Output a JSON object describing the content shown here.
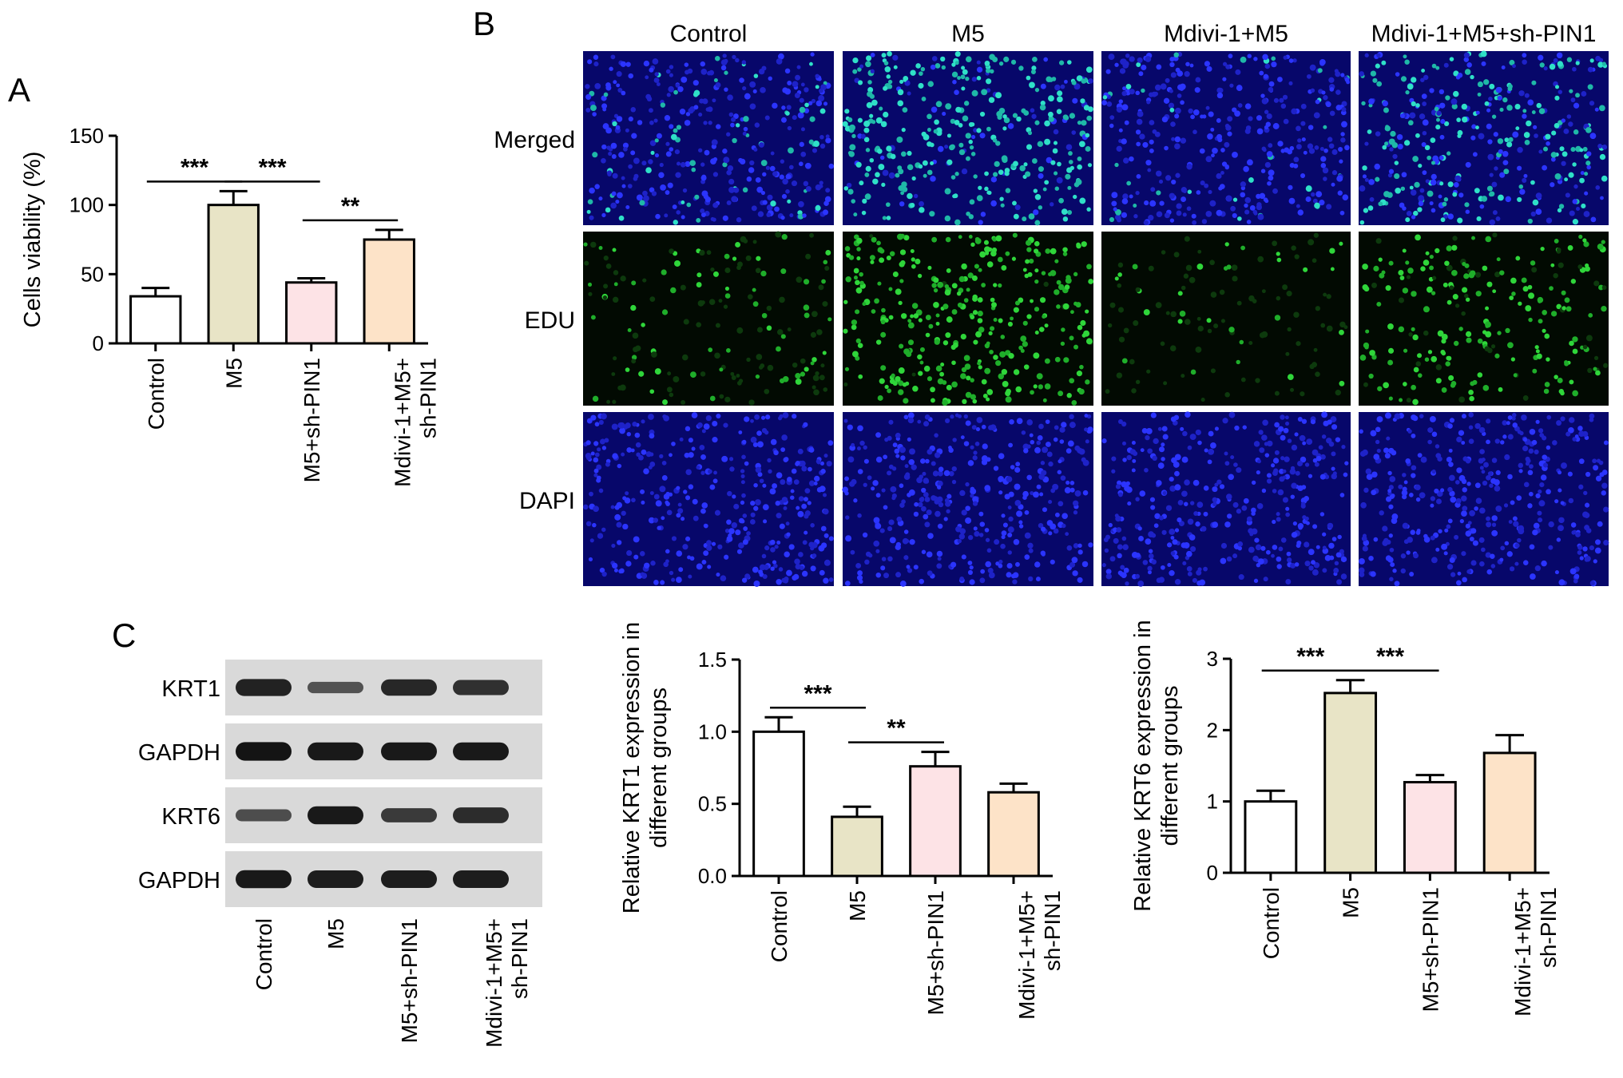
{
  "panels": {
    "a": "A",
    "b": "B",
    "c": "C"
  },
  "colors": {
    "control": "#ffffff",
    "m5": "#e8e4c6",
    "m5_shpin1": "#fde3e6",
    "combo": "#fde3c8"
  },
  "chart_data": [
    {
      "id": "viability",
      "type": "bar",
      "categories": [
        "Control",
        "M5",
        "M5+sh-PIN1",
        "Mdivi-1+M5+\nsh-PIN1"
      ],
      "values": [
        34,
        100,
        44,
        75
      ],
      "errors": [
        6,
        10,
        3,
        7
      ],
      "ylabel": "Cells viability (%)",
      "ylim": [
        0,
        150
      ],
      "yticks": [
        "0",
        "50",
        "100",
        "150"
      ],
      "significance": [
        {
          "from": 0,
          "to": 1,
          "label": "***"
        },
        {
          "from": 1,
          "to": 2,
          "label": "***"
        },
        {
          "from": 2,
          "to": 3,
          "label": "**"
        }
      ]
    },
    {
      "id": "krt1",
      "type": "bar",
      "categories": [
        "Control",
        "M5",
        "M5+sh-PIN1",
        "Mdivi-1+M5+\nsh-PIN1"
      ],
      "values": [
        1.0,
        0.41,
        0.76,
        0.58
      ],
      "errors": [
        0.1,
        0.07,
        0.1,
        0.06
      ],
      "ylabel": "Relative KRT1 expression in\ndifferent groups",
      "ylim": [
        0,
        1.5
      ],
      "yticks": [
        "0.0",
        "0.5",
        "1.0",
        "1.5"
      ],
      "significance": [
        {
          "from": 0,
          "to": 1,
          "label": "***"
        },
        {
          "from": 1,
          "to": 2,
          "label": "**"
        }
      ]
    },
    {
      "id": "krt6",
      "type": "bar",
      "categories": [
        "Control",
        "M5",
        "M5+sh-PIN1",
        "Mdivi-1+M5+\nsh-PIN1"
      ],
      "values": [
        1.0,
        2.52,
        1.27,
        1.68
      ],
      "errors": [
        0.15,
        0.18,
        0.1,
        0.25
      ],
      "ylabel": "Relative KRT6 expression in\ndifferent groups",
      "ylim": [
        0,
        3
      ],
      "yticks": [
        "0",
        "1",
        "2",
        "3"
      ],
      "significance": [
        {
          "from": 0,
          "to": 1,
          "label": "***"
        },
        {
          "from": 1,
          "to": 2,
          "label": "***"
        }
      ]
    }
  ],
  "microscopy": {
    "columns": [
      "Control",
      "M5",
      "Mdivi-1+M5",
      "Mdivi-1+M5+sh-PIN1"
    ],
    "rows": [
      "Merged",
      "EDU",
      "DAPI"
    ],
    "edu_intensity": [
      0.15,
      0.85,
      0.08,
      0.5
    ]
  },
  "blot": {
    "rows": [
      "KRT1",
      "GAPDH",
      "KRT6",
      "GAPDH"
    ],
    "lanes": [
      "Control",
      "M5",
      "M5+sh-PIN1",
      "Mdivi-1+M5+\nsh-PIN1"
    ],
    "band_strength": [
      [
        0.8,
        0.3,
        0.75,
        0.65
      ],
      [
        0.95,
        0.9,
        0.9,
        0.9
      ],
      [
        0.35,
        0.9,
        0.55,
        0.7
      ],
      [
        0.9,
        0.85,
        0.85,
        0.85
      ]
    ]
  }
}
